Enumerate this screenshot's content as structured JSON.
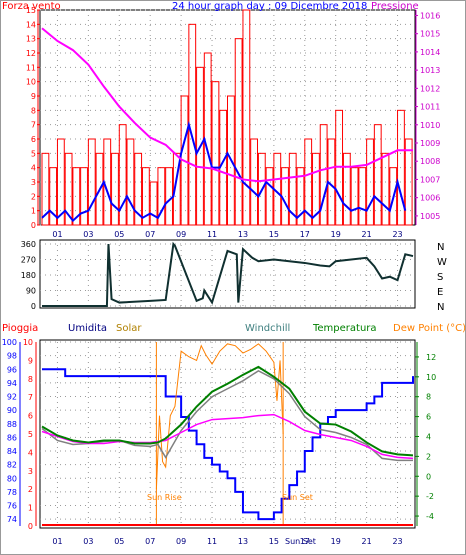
{
  "chart_data": [
    {
      "type": "line",
      "title": "24 hour graph day : 09 Dicembre 2018",
      "left_label": "Forza vento",
      "right_label": "Pressione",
      "x_ticks": [
        "01",
        "03",
        "05",
        "07",
        "09",
        "11",
        "13",
        "15",
        "17",
        "19",
        "21",
        "23"
      ],
      "y_left_ticks": [
        "0",
        "1",
        "2",
        "3",
        "4",
        "5",
        "6",
        "7",
        "8",
        "9",
        "10",
        "11",
        "12",
        "13",
        "14",
        "15"
      ],
      "y_left_range": [
        0,
        15
      ],
      "y_right_ticks": [
        "1005",
        "1006",
        "1007",
        "1008",
        "1009",
        "1010",
        "1011",
        "1012",
        "1013",
        "1014",
        "1015",
        "1016"
      ],
      "y_right_range": [
        1004.5,
        1016.3
      ],
      "grid": true,
      "series": [
        {
          "color": "#ff0000",
          "style": "bars",
          "x": [
            0,
            0.5,
            1,
            1.5,
            2,
            2.5,
            3,
            3.5,
            4,
            4.5,
            5,
            5.5,
            6,
            6.5,
            7,
            7.5,
            8,
            8.5,
            9,
            9.5,
            10,
            10.5,
            11,
            11.5,
            12,
            12.5,
            13,
            13.5,
            14,
            14.5,
            15,
            15.5,
            16,
            16.5,
            17,
            17.5,
            18,
            18.5,
            19,
            19.5,
            20,
            20.5,
            21,
            21.5,
            22,
            22.5,
            23,
            23.5
          ],
          "values": [
            5,
            4,
            6,
            5,
            4,
            4,
            6,
            5,
            6,
            5,
            7,
            6,
            5,
            4,
            3,
            4,
            4,
            5,
            9,
            14,
            11,
            12,
            10,
            8,
            9,
            13,
            15,
            6,
            5,
            4,
            5,
            4,
            5,
            4,
            6,
            5,
            7,
            6,
            8,
            5,
            4,
            4,
            6,
            7,
            5,
            4,
            8,
            6
          ]
        },
        {
          "color": "#0000ff",
          "style": "line",
          "x": [
            0,
            0.5,
            1,
            1.5,
            2,
            2.5,
            3,
            3.5,
            4,
            4.5,
            5,
            5.5,
            6,
            6.5,
            7,
            7.5,
            8,
            8.5,
            9,
            9.5,
            10,
            10.5,
            11,
            11.5,
            12,
            12.5,
            13,
            13.5,
            14,
            14.5,
            15,
            15.5,
            16,
            16.5,
            17,
            17.5,
            18,
            18.5,
            19,
            19.5,
            20,
            20.5,
            21,
            21.5,
            22,
            22.5,
            23,
            23.5
          ],
          "values": [
            0.5,
            1,
            0.5,
            1,
            0.3,
            0.8,
            1,
            2,
            3,
            1.5,
            1,
            2,
            1,
            0.5,
            0.8,
            0.5,
            1.5,
            2,
            5,
            7,
            5,
            6,
            4,
            4,
            5,
            4,
            3,
            2.5,
            2,
            3,
            2.5,
            2,
            1,
            0.5,
            1,
            0.5,
            1,
            3,
            2.5,
            1.5,
            1,
            1.2,
            1,
            2,
            1.5,
            1,
            3,
            1
          ]
        },
        {
          "color": "#ff00ff",
          "style": "line",
          "axis": "right",
          "x": [
            0,
            1,
            2,
            3,
            4,
            5,
            6,
            7,
            8,
            9,
            10,
            11,
            12,
            13,
            14,
            15,
            16,
            17,
            18,
            19,
            20,
            21,
            22,
            23,
            24
          ],
          "values": [
            1015.3,
            1014.6,
            1014.1,
            1013.3,
            1012.1,
            1011.0,
            1010.1,
            1009.3,
            1008.9,
            1008.1,
            1007.7,
            1007.6,
            1007.3,
            1007.0,
            1006.9,
            1007.0,
            1007.1,
            1007.2,
            1007.5,
            1007.7,
            1007.7,
            1007.8,
            1008.2,
            1008.6,
            1008.6
          ]
        }
      ]
    },
    {
      "type": "line",
      "title": "",
      "y_ticks": [
        "0",
        "90",
        "180",
        "270",
        "360"
      ],
      "y_range": [
        0,
        360
      ],
      "right_labels": [
        "N",
        "W",
        "S",
        "E",
        "N"
      ],
      "x_ticks": [
        "01",
        "03",
        "05",
        "07",
        "09",
        "11",
        "13",
        "15",
        "17",
        "19",
        "21",
        "23"
      ],
      "grid": true,
      "series": [
        {
          "color": "#103030",
          "x": [
            0,
            4.2,
            4.3,
            4.5,
            5,
            7,
            8,
            8.5,
            8.6,
            10,
            10.4,
            10.5,
            11,
            12,
            12.6,
            12.7,
            13,
            13.6,
            14,
            15,
            16,
            17,
            18,
            18.6,
            19,
            21,
            21.5,
            22,
            22.5,
            23,
            23.5,
            24
          ],
          "values": [
            0,
            0,
            360,
            40,
            20,
            30,
            35,
            360,
            350,
            30,
            45,
            90,
            20,
            320,
            300,
            20,
            330,
            280,
            260,
            270,
            260,
            250,
            235,
            230,
            260,
            280,
            230,
            160,
            170,
            150,
            300,
            290
          ]
        }
      ]
    },
    {
      "type": "line",
      "title": "",
      "labels": {
        "pioggia": "Pioggia",
        "umidita": "Umidita",
        "solar": "Solar",
        "windchill": "Windchill",
        "temperatura": "Temperatura",
        "dewpoint": "Dew Point (°C)"
      },
      "x_ticks": [
        "01",
        "03",
        "05",
        "07",
        "09",
        "11",
        "13",
        "15",
        "17",
        "19",
        "21",
        "23"
      ],
      "annotations": {
        "sun_rise": "Sun Rise",
        "sun_set": "Sun Set",
        "sun_set_tick": "Sun Set"
      },
      "y_left_ticks": [
        "74",
        "76",
        "78",
        "80",
        "82",
        "84",
        "86",
        "88",
        "90",
        "92",
        "94",
        "96",
        "98",
        "100"
      ],
      "y_left_range": [
        73,
        100
      ],
      "y_rain_ticks": [
        "0",
        "1",
        "2",
        "3",
        "4",
        "5",
        "6",
        "7",
        "8",
        "9",
        "10"
      ],
      "y_rain_range": [
        0,
        10
      ],
      "y_right_ticks": [
        "-4",
        "-2",
        "0",
        "2",
        "4",
        "6",
        "8",
        "10",
        "12"
      ],
      "y_right_range": [
        -5,
        13.5
      ],
      "grid": true,
      "series": [
        {
          "color": "#0000ff",
          "style": "step",
          "axis": "humidity",
          "x": [
            0,
            1,
            1.5,
            2,
            3,
            4,
            5,
            6,
            7,
            8,
            9,
            9.5,
            10,
            10.5,
            11,
            11.5,
            12,
            12.5,
            13,
            14,
            15,
            15.5,
            16,
            16.5,
            17,
            17.5,
            18,
            18.5,
            19,
            19.5,
            20,
            20.5,
            21,
            21.5,
            22,
            23,
            24
          ],
          "values": [
            96,
            96,
            95,
            95,
            95,
            95,
            95,
            95,
            95,
            92,
            89,
            87,
            85,
            83,
            82,
            81,
            80,
            78,
            75,
            74,
            75,
            77,
            79,
            81,
            84,
            86,
            88,
            89,
            90,
            90,
            90,
            90,
            91,
            92,
            94,
            94,
            95
          ]
        },
        {
          "color": "#008000",
          "style": "line",
          "axis": "temp",
          "x": [
            0,
            1,
            2,
            3,
            4,
            5,
            6,
            7,
            7.5,
            8,
            9,
            10,
            11,
            12,
            13,
            14,
            15,
            16,
            17,
            18,
            19,
            20,
            21,
            22,
            23,
            24
          ],
          "values": [
            5.0,
            4.1,
            3.6,
            3.4,
            3.6,
            3.6,
            3.3,
            3.3,
            3.4,
            3.8,
            5.2,
            7.0,
            8.5,
            9.3,
            10.2,
            11.0,
            10.0,
            8.8,
            6.5,
            5.3,
            5.2,
            4.5,
            3.4,
            2.5,
            2.2,
            2.1
          ]
        },
        {
          "color": "#808080",
          "style": "line",
          "axis": "temp",
          "x": [
            0,
            1,
            2,
            3,
            4,
            5,
            6,
            7,
            7.5,
            8,
            9,
            10,
            11,
            12,
            13,
            14,
            15,
            16,
            17,
            18,
            19,
            20,
            21,
            22,
            23,
            24
          ],
          "values": [
            4.8,
            3.6,
            3.2,
            3.3,
            3.5,
            3.6,
            3.1,
            3.0,
            3.2,
            1.9,
            4.6,
            6.5,
            8.0,
            8.8,
            9.6,
            10.6,
            9.8,
            8.3,
            6.0,
            4.7,
            4.4,
            3.9,
            3.2,
            1.8,
            1.6,
            1.6
          ]
        },
        {
          "color": "#ff00ff",
          "style": "line",
          "axis": "temp",
          "x": [
            0,
            1,
            2,
            3,
            4,
            5,
            6,
            7,
            8,
            9,
            10,
            11,
            12,
            13,
            14,
            15,
            16,
            17,
            18,
            19,
            20,
            21,
            22,
            23,
            24
          ],
          "values": [
            4.5,
            4.0,
            3.5,
            3.3,
            3.3,
            3.5,
            3.4,
            3.4,
            3.6,
            4.4,
            5.2,
            5.7,
            5.8,
            5.9,
            6.1,
            6.2,
            5.5,
            4.6,
            4.2,
            3.9,
            3.6,
            3.0,
            2.2,
            1.9,
            1.8
          ]
        },
        {
          "color": "#ff8000",
          "style": "line",
          "axis": "rain",
          "x": [
            7.4,
            7.6,
            7.8,
            8,
            8.3,
            8.6,
            9,
            9.5,
            10,
            10.3,
            10.6,
            11,
            11.5,
            12,
            12.5,
            13,
            13.5,
            14,
            14.5,
            15,
            15.2,
            15.4,
            15.6
          ],
          "values": [
            2,
            6,
            3.5,
            3.2,
            6,
            6.5,
            9.5,
            9.2,
            9,
            9.8,
            9.3,
            8.8,
            9.5,
            9.9,
            9.8,
            9.4,
            9.6,
            9.9,
            9.5,
            8.9,
            6.8,
            9,
            5
          ]
        },
        {
          "color": "#ff0000",
          "style": "line",
          "axis": "rain",
          "x": [
            0,
            24
          ],
          "values": [
            0,
            0
          ]
        }
      ]
    }
  ]
}
